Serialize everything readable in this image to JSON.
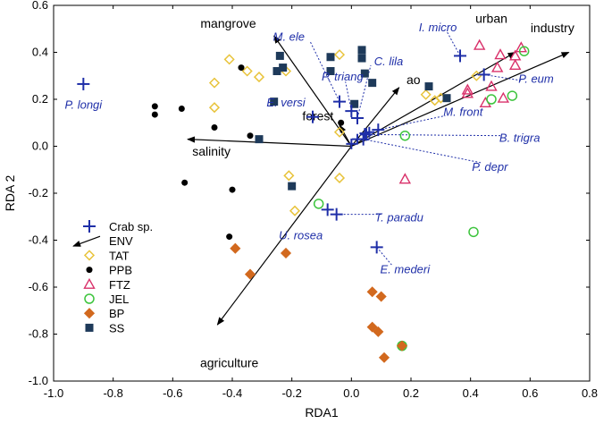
{
  "chart_data": {
    "type": "scatter",
    "subtype": "rda-triplot",
    "xlabel": "RDA1",
    "ylabel": "RDA 2",
    "xlim": [
      -1.0,
      0.8
    ],
    "ylim": [
      -1.0,
      0.6
    ],
    "xticks": [
      "-1.0",
      "-0.8",
      "-0.6",
      "-0.4",
      "-0.2",
      "0.0",
      "0.2",
      "0.4",
      "0.6",
      "0.8"
    ],
    "xtick_values": [
      -1.0,
      -0.8,
      -0.6,
      -0.4,
      -0.2,
      0.0,
      0.2,
      0.4,
      0.6,
      0.8
    ],
    "yticks": [
      "0.6",
      "0.4",
      "0.2",
      "0.0",
      "-0.2",
      "-0.4",
      "-0.6",
      "-0.8",
      "-1.0"
    ],
    "ytick_values": [
      0.6,
      0.4,
      0.2,
      0.0,
      -0.2,
      -0.4,
      -0.6,
      -0.8,
      -1.0
    ],
    "env_vectors": [
      {
        "name": "mangrove",
        "x": -0.26,
        "y": 0.47,
        "lx": -0.32,
        "ly": 0.505,
        "anchor": "end"
      },
      {
        "name": "urban",
        "x": 0.55,
        "y": 0.4,
        "lx": 0.47,
        "ly": 0.525,
        "anchor": "middle"
      },
      {
        "name": "industry",
        "x": 0.73,
        "y": 0.4,
        "lx": 0.675,
        "ly": 0.485,
        "anchor": "middle"
      },
      {
        "name": "ao",
        "x": 0.16,
        "y": 0.25,
        "lx": 0.185,
        "ly": 0.265,
        "anchor": "start"
      },
      {
        "name": "forest",
        "x": -0.04,
        "y": 0.09,
        "lx": -0.06,
        "ly": 0.11,
        "anchor": "end"
      },
      {
        "name": "salinity",
        "x": -0.55,
        "y": 0.03,
        "lx": -0.47,
        "ly": -0.04,
        "anchor": "middle"
      },
      {
        "name": "agriculture",
        "x": -0.45,
        "y": -0.76,
        "lx": -0.41,
        "ly": -0.94,
        "anchor": "middle"
      }
    ],
    "crab_species": [
      {
        "name": "P. longi",
        "x": -0.9,
        "y": 0.265,
        "lx": -0.9,
        "ly": 0.175,
        "anchor": "middle",
        "leader": false
      },
      {
        "name": "M. ele",
        "x": -0.04,
        "y": 0.19,
        "lx": -0.21,
        "ly": 0.465,
        "anchor": "middle",
        "leader": true,
        "kx": -0.14,
        "ky": 0.45
      },
      {
        "name": "P. triang",
        "x": 0.0,
        "y": 0.15,
        "lx": -0.03,
        "ly": 0.295,
        "anchor": "middle",
        "leader": true,
        "kx": -0.02,
        "ky": 0.275
      },
      {
        "name": "C. lila",
        "x": 0.02,
        "y": 0.12,
        "lx": 0.125,
        "ly": 0.36,
        "anchor": "middle",
        "leader": true,
        "kx": 0.065,
        "ky": 0.345
      },
      {
        "name": "E. versi",
        "x": -0.13,
        "y": 0.125,
        "lx": -0.22,
        "ly": 0.185,
        "anchor": "middle",
        "leader": false
      },
      {
        "name": "I. micro",
        "x": 0.365,
        "y": 0.385,
        "lx": 0.29,
        "ly": 0.505,
        "anchor": "middle",
        "leader": true,
        "kx": 0.32,
        "ky": 0.49
      },
      {
        "name": "P. eum",
        "x": 0.445,
        "y": 0.305,
        "lx": 0.62,
        "ly": 0.285,
        "anchor": "middle",
        "leader": true,
        "kx": 0.57,
        "ky": 0.28
      },
      {
        "name": "M. front",
        "x": 0.09,
        "y": 0.07,
        "lx": 0.375,
        "ly": 0.145,
        "anchor": "middle",
        "leader": true,
        "kx": 0.315,
        "ky": 0.13
      },
      {
        "name": "B. trigra",
        "x": 0.05,
        "y": 0.05,
        "lx": 0.565,
        "ly": 0.035,
        "anchor": "middle",
        "leader": true,
        "kx": 0.505,
        "ky": 0.045
      },
      {
        "name": "P. depr",
        "x": 0.04,
        "y": 0.03,
        "lx": 0.465,
        "ly": -0.09,
        "anchor": "middle",
        "leader": true,
        "kx": 0.435,
        "ky": -0.07
      },
      {
        "name": "U. rosea",
        "x": -0.08,
        "y": -0.27,
        "lx": -0.17,
        "ly": -0.38,
        "anchor": "middle",
        "leader": false
      },
      {
        "name": "T. paradu",
        "x": -0.05,
        "y": -0.29,
        "lx": 0.16,
        "ly": -0.305,
        "anchor": "middle",
        "leader": true,
        "kx": 0.105,
        "ky": -0.29
      },
      {
        "name": "E. mederi",
        "x": 0.085,
        "y": -0.43,
        "lx": 0.18,
        "ly": -0.525,
        "anchor": "middle",
        "leader": true,
        "kx": 0.135,
        "ky": -0.505
      }
    ],
    "extra_crab_points": [
      {
        "x": 0.02,
        "y": 0.03
      },
      {
        "x": 0.045,
        "y": 0.055
      },
      {
        "x": 0.06,
        "y": 0.06
      },
      {
        "x": 0.0,
        "y": 0.01
      }
    ],
    "sites": [
      {
        "name": "TAT",
        "marker": "diamond-open",
        "color": "#e8c33a",
        "points": [
          [
            -0.41,
            0.37
          ],
          [
            -0.35,
            0.32
          ],
          [
            -0.31,
            0.295
          ],
          [
            -0.46,
            0.27
          ],
          [
            -0.22,
            0.32
          ],
          [
            -0.46,
            0.165
          ],
          [
            -0.04,
            0.39
          ],
          [
            -0.04,
            0.06
          ],
          [
            -0.04,
            -0.135
          ],
          [
            -0.21,
            -0.125
          ],
          [
            -0.19,
            -0.275
          ],
          [
            0.25,
            0.22
          ],
          [
            0.28,
            0.195
          ],
          [
            0.3,
            0.205
          ],
          [
            0.42,
            0.3
          ]
        ]
      },
      {
        "name": "PPB",
        "marker": "dot",
        "color": "#000000",
        "points": [
          [
            -0.66,
            0.17
          ],
          [
            -0.66,
            0.135
          ],
          [
            -0.57,
            0.16
          ],
          [
            -0.37,
            0.335
          ],
          [
            -0.46,
            0.08
          ],
          [
            -0.34,
            0.045
          ],
          [
            -0.56,
            -0.155
          ],
          [
            -0.4,
            -0.185
          ],
          [
            -0.41,
            -0.385
          ],
          [
            -0.035,
            0.1
          ]
        ]
      },
      {
        "name": "FTZ",
        "marker": "triangle-open",
        "color": "#d9306a",
        "points": [
          [
            0.43,
            0.43
          ],
          [
            0.5,
            0.39
          ],
          [
            0.57,
            0.42
          ],
          [
            0.49,
            0.335
          ],
          [
            0.55,
            0.385
          ],
          [
            0.55,
            0.345
          ],
          [
            0.47,
            0.255
          ],
          [
            0.39,
            0.225
          ],
          [
            0.45,
            0.185
          ],
          [
            0.51,
            0.205
          ],
          [
            0.39,
            0.24
          ],
          [
            0.18,
            -0.14
          ]
        ]
      },
      {
        "name": "JEL",
        "marker": "circle-open",
        "color": "#3cc43c",
        "points": [
          [
            0.58,
            0.405
          ],
          [
            0.54,
            0.215
          ],
          [
            0.47,
            0.2
          ],
          [
            0.18,
            0.045
          ],
          [
            -0.11,
            -0.245
          ],
          [
            0.41,
            -0.365
          ],
          [
            0.17,
            -0.85
          ]
        ]
      },
      {
        "name": "BP",
        "marker": "diamond",
        "color": "#d2691e",
        "points": [
          [
            -0.39,
            -0.435
          ],
          [
            -0.34,
            -0.545
          ],
          [
            -0.22,
            -0.455
          ],
          [
            0.07,
            -0.62
          ],
          [
            0.1,
            -0.64
          ],
          [
            0.07,
            -0.77
          ],
          [
            0.09,
            -0.79
          ],
          [
            0.17,
            -0.85
          ],
          [
            0.11,
            -0.9
          ]
        ]
      },
      {
        "name": "SS",
        "marker": "square",
        "color": "#1e3a5a",
        "points": [
          [
            -0.24,
            0.385
          ],
          [
            -0.23,
            0.335
          ],
          [
            -0.25,
            0.32
          ],
          [
            -0.26,
            0.19
          ],
          [
            -0.31,
            0.03
          ],
          [
            -0.2,
            -0.17
          ],
          [
            -0.07,
            0.38
          ],
          [
            -0.07,
            0.32
          ],
          [
            0.035,
            0.41
          ],
          [
            0.035,
            0.375
          ],
          [
            0.045,
            0.31
          ],
          [
            0.07,
            0.27
          ],
          [
            0.01,
            0.18
          ],
          [
            0.26,
            0.255
          ],
          [
            0.32,
            0.205
          ]
        ]
      }
    ],
    "legend": {
      "position": "bottom-left",
      "entries": [
        {
          "label": "Crab sp.",
          "marker": "plus",
          "color": "#1f2fa8"
        },
        {
          "label": "ENV",
          "marker": "arrow",
          "color": "#000000"
        },
        {
          "label": "TAT",
          "marker": "diamond-open",
          "color": "#e8c33a"
        },
        {
          "label": "PPB",
          "marker": "dot",
          "color": "#000000"
        },
        {
          "label": "FTZ",
          "marker": "triangle-open",
          "color": "#d9306a"
        },
        {
          "label": "JEL",
          "marker": "circle-open",
          "color": "#3cc43c"
        },
        {
          "label": "BP",
          "marker": "diamond",
          "color": "#d2691e"
        },
        {
          "label": "SS",
          "marker": "square",
          "color": "#1e3a5a"
        }
      ]
    },
    "colors": {
      "crab": "#1f2fa8",
      "env": "#000000",
      "axis": "#000000"
    }
  }
}
